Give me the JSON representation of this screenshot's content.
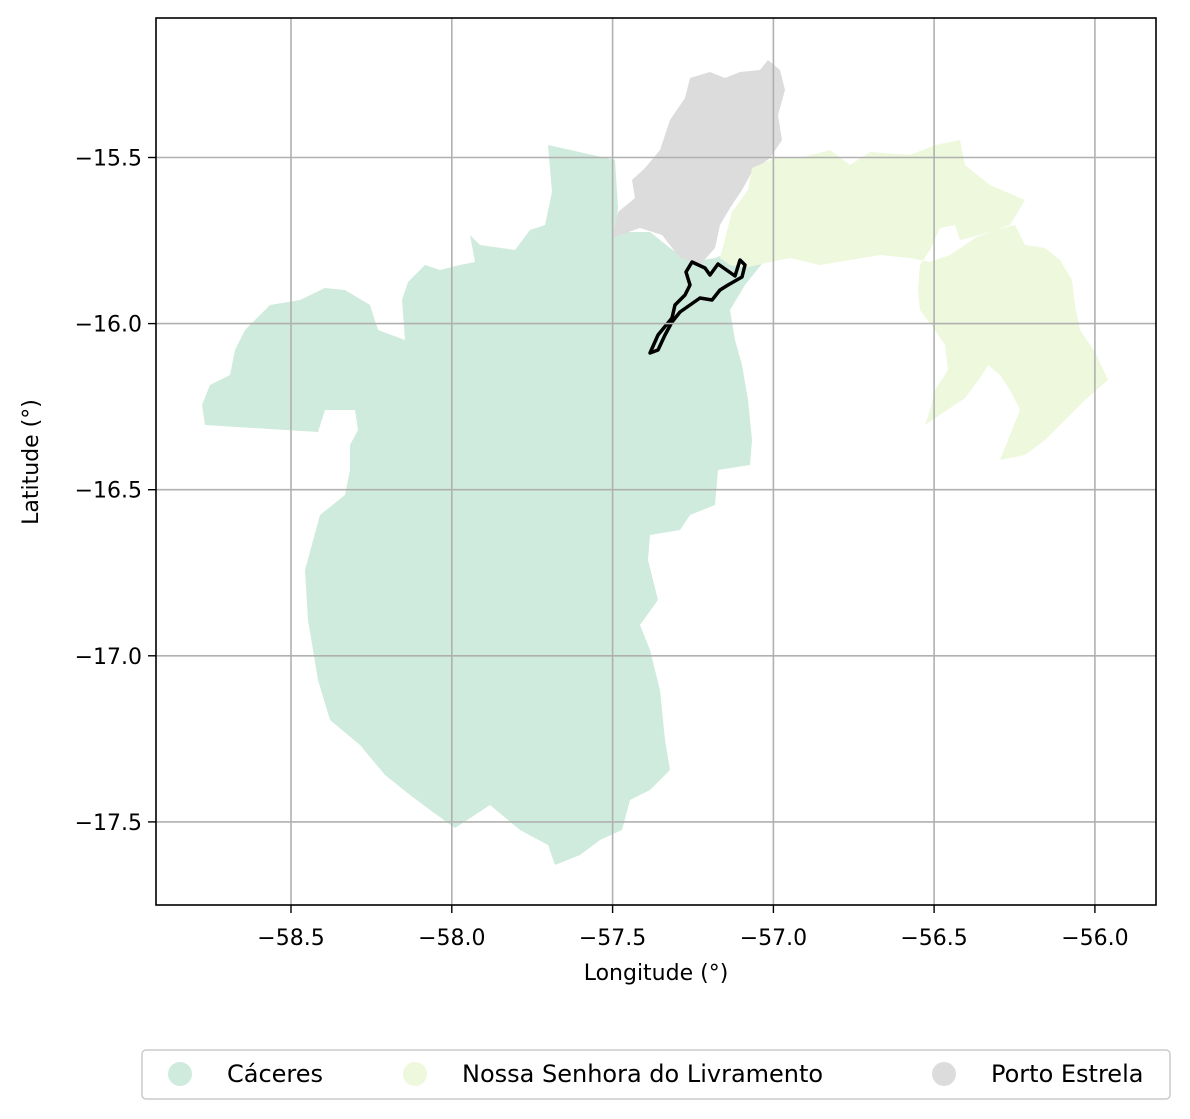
{
  "map": {
    "xlabel": "Longitude (°)",
    "ylabel": "Latitude (°)",
    "xlim": [
      -58.92,
      -55.81
    ],
    "ylim": [
      -17.75,
      -15.08
    ],
    "x_ticks": [
      -58.5,
      -58.0,
      -57.5,
      -57.0,
      -56.5,
      -56.0
    ],
    "y_ticks": [
      -15.5,
      -16.0,
      -16.5,
      -17.0,
      -17.5
    ],
    "x_tick_labels": [
      "−58.5",
      "−58.0",
      "−57.5",
      "−57.0",
      "−56.5",
      "−56.0"
    ],
    "y_tick_labels": [
      "−15.5",
      "−16.0",
      "−16.5",
      "−17.0",
      "−17.5"
    ],
    "grid": true,
    "legend_placement": "bottom-center"
  },
  "legend": {
    "items": [
      {
        "label": "Cáceres",
        "color": "#cfebdd"
      },
      {
        "label": "Nossa Senhora do Livramento",
        "color": "#eef8dc"
      },
      {
        "label": "Porto Estrela",
        "color": "#dcdcdc"
      }
    ]
  },
  "colors": {
    "caceres": "#cfebdd",
    "livramento": "#eef8dc",
    "porto_estrela": "#dcdcdc",
    "outline": "#000000",
    "grid": "#b0b0b0"
  }
}
